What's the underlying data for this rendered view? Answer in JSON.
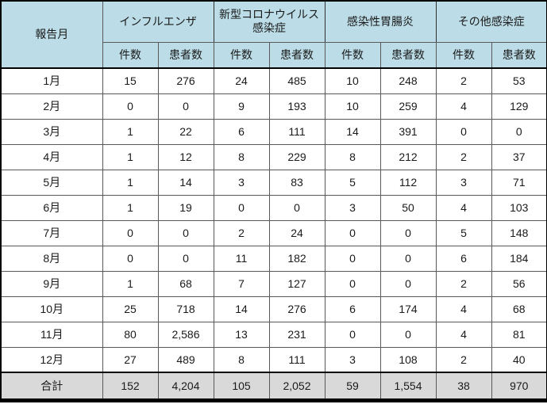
{
  "chart_data": {
    "type": "table",
    "row_header": "報告月",
    "column_groups": [
      "インフルエンザ",
      "新型コロナウイルス感染症",
      "感染性胃腸炎",
      "その他感染症"
    ],
    "sub_columns": [
      "件数",
      "患者数"
    ],
    "rows": [
      {
        "month": "1月",
        "values": [
          "15",
          "276",
          "24",
          "485",
          "10",
          "248",
          "2",
          "53"
        ]
      },
      {
        "month": "2月",
        "values": [
          "0",
          "0",
          "9",
          "193",
          "10",
          "259",
          "4",
          "129"
        ]
      },
      {
        "month": "3月",
        "values": [
          "1",
          "22",
          "6",
          "111",
          "14",
          "391",
          "0",
          "0"
        ]
      },
      {
        "month": "4月",
        "values": [
          "1",
          "12",
          "8",
          "229",
          "8",
          "212",
          "2",
          "37"
        ]
      },
      {
        "month": "5月",
        "values": [
          "1",
          "14",
          "3",
          "83",
          "5",
          "112",
          "3",
          "71"
        ]
      },
      {
        "month": "6月",
        "values": [
          "1",
          "19",
          "0",
          "0",
          "3",
          "50",
          "4",
          "103"
        ]
      },
      {
        "month": "7月",
        "values": [
          "0",
          "0",
          "2",
          "24",
          "0",
          "0",
          "5",
          "148"
        ]
      },
      {
        "month": "8月",
        "values": [
          "0",
          "0",
          "11",
          "182",
          "0",
          "0",
          "6",
          "184"
        ]
      },
      {
        "month": "9月",
        "values": [
          "1",
          "68",
          "7",
          "127",
          "0",
          "0",
          "2",
          "56"
        ]
      },
      {
        "month": "10月",
        "values": [
          "25",
          "718",
          "14",
          "276",
          "6",
          "174",
          "4",
          "68"
        ]
      },
      {
        "month": "11月",
        "values": [
          "80",
          "2,586",
          "13",
          "231",
          "0",
          "0",
          "4",
          "81"
        ]
      },
      {
        "month": "12月",
        "values": [
          "27",
          "489",
          "8",
          "111",
          "3",
          "108",
          "2",
          "40"
        ]
      }
    ],
    "total_row": {
      "label": "合計",
      "values": [
        "152",
        "4,204",
        "105",
        "2,052",
        "59",
        "1,554",
        "38",
        "970"
      ]
    }
  },
  "colors": {
    "header_bg": "#BCDDE7",
    "total_bg": "#D9D9D9",
    "outer_border": "#000000",
    "grid_line": "#595959"
  }
}
